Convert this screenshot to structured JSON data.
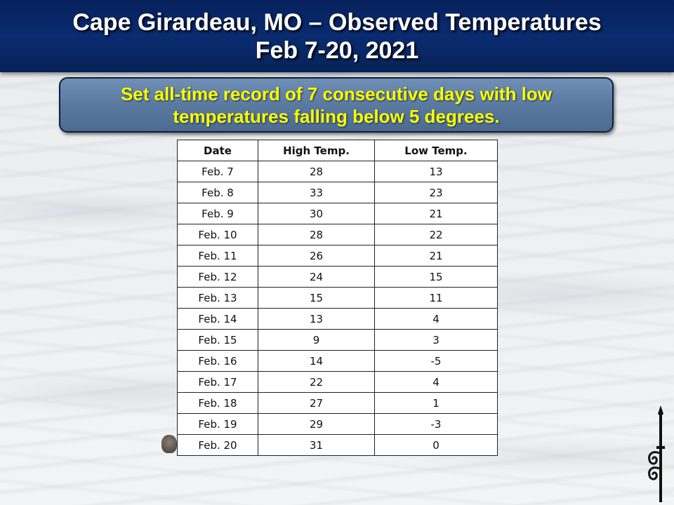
{
  "header": {
    "line1": "Cape Girardeau, MO – Observed Temperatures",
    "line2": "Feb 7-20, 2021"
  },
  "banner": {
    "line1": "Set all-time record of 7 consecutive days with low",
    "line2": "temperatures falling below 5 degrees."
  },
  "table": {
    "headers": [
      "Date",
      "High Temp.",
      "Low Temp."
    ],
    "rows": [
      [
        "Feb. 7",
        "28",
        "13"
      ],
      [
        "Feb. 8",
        "33",
        "23"
      ],
      [
        "Feb. 9",
        "30",
        "21"
      ],
      [
        "Feb. 10",
        "28",
        "22"
      ],
      [
        "Feb. 11",
        "26",
        "21"
      ],
      [
        "Feb. 12",
        "24",
        "15"
      ],
      [
        "Feb. 13",
        "15",
        "11"
      ],
      [
        "Feb. 14",
        "13",
        "4"
      ],
      [
        "Feb. 15",
        "9",
        "3"
      ],
      [
        "Feb. 16",
        "14",
        "-5"
      ],
      [
        "Feb. 17",
        "22",
        "4"
      ],
      [
        "Feb. 18",
        "27",
        "1"
      ],
      [
        "Feb. 19",
        "29",
        "-3"
      ],
      [
        "Feb. 20",
        "31",
        "0"
      ]
    ]
  },
  "colors": {
    "header_bg": "#0a2b70",
    "banner_bg": "#5f7fa8",
    "banner_text": "#ffff00"
  }
}
